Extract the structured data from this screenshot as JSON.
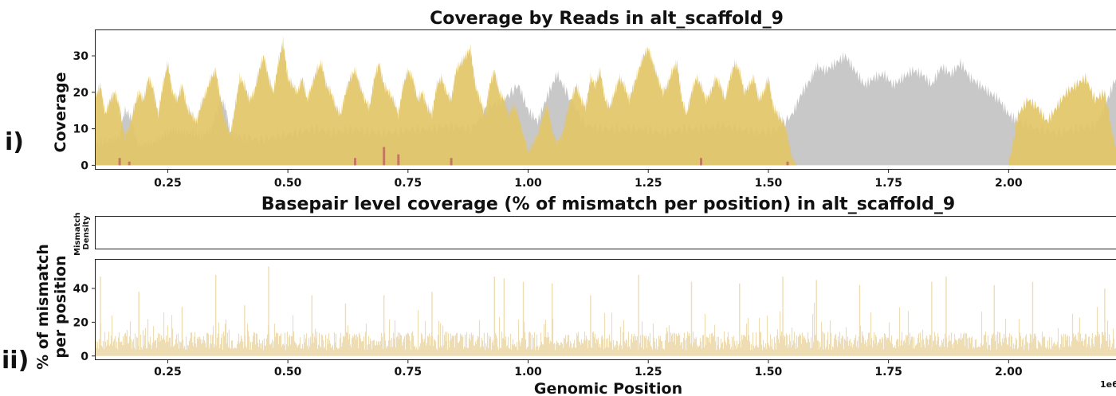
{
  "panels": {
    "top_label": "i)",
    "bottom_label": "ii)"
  },
  "chart_data": [
    {
      "type": "area",
      "title": "Coverage by Reads in alt_scaffold_9",
      "xlabel": "",
      "ylabel": "Coverage",
      "xlim": [
        0.1,
        2.24
      ],
      "ylim": [
        -1,
        37
      ],
      "x_scale_label": "",
      "xticks": [
        0.25,
        0.5,
        0.75,
        1.0,
        1.25,
        1.5,
        1.75,
        2.0
      ],
      "xtick_labels": [
        "0.25",
        "0.50",
        "0.75",
        "1.00",
        "1.25",
        "1.50",
        "1.75",
        "2.00"
      ],
      "yticks": [
        0,
        10,
        20,
        30
      ],
      "ytick_labels": [
        "0",
        "10",
        "20",
        "30"
      ],
      "colors": {
        "primary": "#e3c668",
        "secondary": "#c8c8c8",
        "mismatch": "#b85c5c"
      },
      "series": [
        {
          "color_role": "secondary",
          "x": [
            0.1,
            0.13,
            0.15,
            0.16,
            0.17,
            0.19,
            0.2,
            0.22,
            0.24,
            0.26,
            0.28,
            0.3,
            0.32,
            0.34,
            0.36,
            0.37,
            0.38,
            0.4,
            0.44,
            0.48,
            0.52,
            0.56,
            0.6,
            0.64,
            0.68,
            0.72,
            0.76,
            0.8,
            0.84,
            0.88,
            0.92,
            0.95,
            0.98,
            1.0,
            1.02,
            1.04,
            1.06,
            1.08,
            1.12,
            1.16,
            1.2,
            1.24,
            1.28,
            1.32,
            1.36,
            1.4,
            1.44,
            1.48,
            1.52,
            1.55,
            1.57,
            1.59,
            1.6,
            1.62,
            1.64,
            1.66,
            1.68,
            1.7,
            1.72,
            1.74,
            1.76,
            1.78,
            1.8,
            1.82,
            1.84,
            1.86,
            1.88,
            1.9,
            1.92,
            1.94,
            1.96,
            1.98,
            2.0,
            2.02,
            2.06,
            2.1,
            2.14,
            2.18,
            2.2,
            2.22,
            2.24
          ],
          "y": [
            6,
            7,
            8,
            15,
            14,
            5,
            6,
            6,
            8,
            10,
            9,
            9,
            8,
            10,
            18,
            16,
            9,
            8,
            7,
            8,
            9,
            10,
            9,
            10,
            9,
            9,
            10,
            10,
            11,
            10,
            16,
            18,
            22,
            15,
            12,
            19,
            25,
            20,
            11,
            10,
            10,
            10,
            9,
            10,
            10,
            11,
            10,
            9,
            10,
            14,
            20,
            24,
            27,
            26,
            28,
            30,
            26,
            22,
            24,
            25,
            22,
            24,
            26,
            25,
            22,
            27,
            25,
            28,
            24,
            22,
            20,
            18,
            14,
            12,
            10,
            9,
            10,
            11,
            16,
            23,
            25
          ]
        },
        {
          "color_role": "primary",
          "x": [
            0.1,
            0.11,
            0.12,
            0.13,
            0.14,
            0.15,
            0.16,
            0.17,
            0.18,
            0.19,
            0.2,
            0.21,
            0.22,
            0.23,
            0.24,
            0.25,
            0.26,
            0.27,
            0.28,
            0.29,
            0.3,
            0.31,
            0.32,
            0.33,
            0.34,
            0.35,
            0.36,
            0.37,
            0.38,
            0.39,
            0.4,
            0.41,
            0.42,
            0.43,
            0.44,
            0.45,
            0.46,
            0.47,
            0.48,
            0.49,
            0.5,
            0.51,
            0.52,
            0.53,
            0.54,
            0.55,
            0.56,
            0.57,
            0.58,
            0.59,
            0.6,
            0.61,
            0.62,
            0.63,
            0.64,
            0.65,
            0.66,
            0.67,
            0.68,
            0.69,
            0.7,
            0.71,
            0.72,
            0.73,
            0.74,
            0.75,
            0.76,
            0.77,
            0.78,
            0.79,
            0.8,
            0.81,
            0.82,
            0.83,
            0.84,
            0.85,
            0.86,
            0.87,
            0.88,
            0.89,
            0.9,
            0.91,
            0.92,
            0.93,
            0.94,
            0.95,
            0.96,
            0.97,
            0.98,
            0.99,
            1.0,
            1.01,
            1.02,
            1.03,
            1.04,
            1.05,
            1.06,
            1.07,
            1.08,
            1.09,
            1.1,
            1.11,
            1.12,
            1.13,
            1.14,
            1.15,
            1.16,
            1.17,
            1.18,
            1.19,
            1.2,
            1.21,
            1.22,
            1.23,
            1.24,
            1.25,
            1.26,
            1.27,
            1.28,
            1.29,
            1.3,
            1.31,
            1.32,
            1.33,
            1.34,
            1.35,
            1.36,
            1.37,
            1.38,
            1.39,
            1.4,
            1.41,
            1.42,
            1.43,
            1.44,
            1.45,
            1.46,
            1.47,
            1.48,
            1.49,
            1.5,
            1.51,
            1.52,
            1.53,
            1.54,
            1.55,
            1.56,
            1.57,
            1.6,
            1.7,
            1.8,
            1.9,
            2.0,
            2.02,
            2.04,
            2.06,
            2.08,
            2.1,
            2.12,
            2.14,
            2.16,
            2.18,
            2.2,
            2.22,
            2.24
          ],
          "y": [
            19,
            22,
            14,
            18,
            20,
            16,
            8,
            10,
            16,
            20,
            18,
            24,
            21,
            14,
            22,
            28,
            20,
            18,
            22,
            16,
            14,
            12,
            17,
            20,
            24,
            26,
            18,
            12,
            8,
            16,
            24,
            22,
            18,
            20,
            26,
            30,
            24,
            20,
            28,
            34,
            24,
            22,
            20,
            24,
            18,
            22,
            26,
            28,
            22,
            20,
            16,
            14,
            20,
            24,
            26,
            22,
            18,
            16,
            24,
            28,
            22,
            20,
            18,
            14,
            22,
            26,
            24,
            18,
            20,
            16,
            14,
            22,
            24,
            20,
            18,
            26,
            28,
            30,
            32,
            22,
            18,
            14,
            22,
            26,
            20,
            18,
            14,
            16,
            14,
            8,
            4,
            6,
            8,
            14,
            16,
            10,
            6,
            8,
            14,
            18,
            22,
            18,
            16,
            24,
            22,
            26,
            18,
            16,
            20,
            24,
            22,
            18,
            22,
            26,
            30,
            32,
            28,
            24,
            20,
            22,
            26,
            28,
            18,
            14,
            20,
            24,
            22,
            18,
            20,
            24,
            22,
            18,
            24,
            28,
            26,
            20,
            22,
            24,
            18,
            20,
            24,
            16,
            14,
            12,
            8,
            2,
            0,
            0,
            0,
            0,
            0,
            0,
            0,
            14,
            18,
            16,
            12,
            16,
            20,
            22,
            24,
            18,
            20,
            6,
            2
          ]
        }
      ],
      "mismatch_markers": [
        {
          "x": 0.15,
          "y": 2
        },
        {
          "x": 0.17,
          "y": 1
        },
        {
          "x": 0.64,
          "y": 2
        },
        {
          "x": 0.7,
          "y": 5
        },
        {
          "x": 0.73,
          "y": 3
        },
        {
          "x": 0.84,
          "y": 2
        },
        {
          "x": 1.36,
          "y": 2
        },
        {
          "x": 1.54,
          "y": 1
        }
      ]
    },
    {
      "type": "bar",
      "title": "Basepair level coverage (% of mismatch per position) in alt_scaffold_9",
      "subpanel_label": "Mismatch\nDensity",
      "xlabel": "Genomic Position",
      "ylabel": "% of mismatch per position",
      "x_scale_label": "1e6",
      "xlim": [
        0.1,
        2.24
      ],
      "ylim": [
        -2,
        57
      ],
      "xticks": [
        0.25,
        0.5,
        0.75,
        1.0,
        1.25,
        1.5,
        1.75,
        2.0
      ],
      "xtick_labels": [
        "0.25",
        "0.50",
        "0.75",
        "1.00",
        "1.25",
        "1.50",
        "1.75",
        "2.00"
      ],
      "yticks": [
        0,
        20,
        40
      ],
      "ytick_labels": [
        "0",
        "20",
        "40"
      ],
      "colors": {
        "bars": "#eedcb3"
      },
      "baseline_level": 10,
      "peaks": [
        {
          "x": 0.11,
          "y": 47
        },
        {
          "x": 0.19,
          "y": 38
        },
        {
          "x": 0.28,
          "y": 29
        },
        {
          "x": 0.35,
          "y": 48
        },
        {
          "x": 0.41,
          "y": 30
        },
        {
          "x": 0.46,
          "y": 53
        },
        {
          "x": 0.55,
          "y": 36
        },
        {
          "x": 0.62,
          "y": 31
        },
        {
          "x": 0.7,
          "y": 36
        },
        {
          "x": 0.8,
          "y": 38
        },
        {
          "x": 0.93,
          "y": 47
        },
        {
          "x": 0.95,
          "y": 46
        },
        {
          "x": 0.99,
          "y": 44
        },
        {
          "x": 1.05,
          "y": 43
        },
        {
          "x": 1.13,
          "y": 36
        },
        {
          "x": 1.23,
          "y": 48
        },
        {
          "x": 1.34,
          "y": 44
        },
        {
          "x": 1.44,
          "y": 43
        },
        {
          "x": 1.53,
          "y": 47
        },
        {
          "x": 1.6,
          "y": 45
        },
        {
          "x": 1.69,
          "y": 42
        },
        {
          "x": 1.84,
          "y": 44
        },
        {
          "x": 1.87,
          "y": 47
        },
        {
          "x": 1.97,
          "y": 42
        },
        {
          "x": 2.05,
          "y": 44
        },
        {
          "x": 2.2,
          "y": 40
        }
      ]
    }
  ]
}
